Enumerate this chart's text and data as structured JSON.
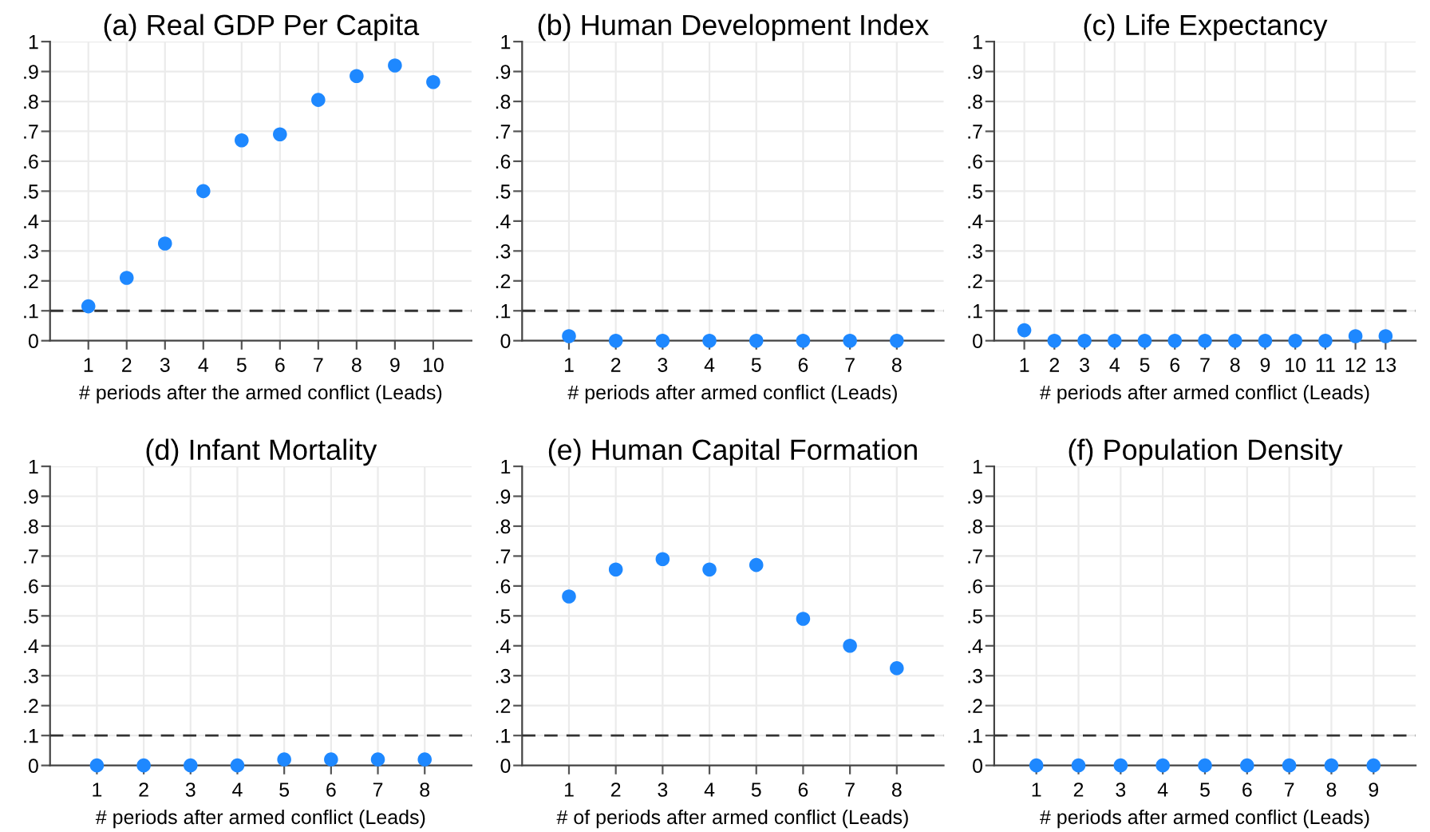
{
  "chart_data": [
    {
      "type": "scatter",
      "title": "(a) Real GDP Per Capita",
      "xlabel": "# periods after the armed conflict (Leads)",
      "x": [
        1,
        2,
        3,
        4,
        5,
        6,
        7,
        8,
        9,
        10
      ],
      "values": [
        0.115,
        0.21,
        0.325,
        0.5,
        0.67,
        0.69,
        0.805,
        0.885,
        0.92,
        0.865
      ],
      "color": "#1e88ff",
      "xlim": [
        0,
        11
      ],
      "xticks": [
        1,
        2,
        3,
        4,
        5,
        6,
        7,
        8,
        9,
        10
      ],
      "ylim": [
        0,
        1
      ],
      "yticks": [
        0,
        {
          "value": 0.1,
          "label": ".1"
        },
        {
          "value": 0.2,
          "label": ".2"
        },
        {
          "value": 0.3,
          "label": ".3"
        },
        {
          "value": 0.4,
          "label": ".4"
        },
        {
          "value": 0.5,
          "label": ".5"
        },
        {
          "value": 0.6,
          "label": ".6"
        },
        {
          "value": 0.7,
          "label": ".7"
        },
        {
          "value": 0.8,
          "label": ".8"
        },
        {
          "value": 0.9,
          "label": ".9"
        },
        1
      ],
      "grid": true,
      "marker": "circle",
      "ref_lines": [
        {
          "axis": "y",
          "value": 0.1,
          "line_style": "dashed",
          "color": "#333333"
        }
      ]
    },
    {
      "type": "scatter",
      "title": "(b) Human Development Index",
      "xlabel": "# periods after armed conflict (Leads)",
      "x": [
        1,
        2,
        3,
        4,
        5,
        6,
        7,
        8
      ],
      "values": [
        0.015,
        0,
        0,
        0,
        0,
        0,
        0,
        0
      ],
      "color": "#1e88ff",
      "xlim": [
        0,
        9
      ],
      "xticks": [
        1,
        2,
        3,
        4,
        5,
        6,
        7,
        8
      ],
      "ylim": [
        0,
        1
      ],
      "yticks": [
        0,
        {
          "value": 0.1,
          "label": ".1"
        },
        {
          "value": 0.2,
          "label": ".2"
        },
        {
          "value": 0.3,
          "label": ".3"
        },
        {
          "value": 0.4,
          "label": ".4"
        },
        {
          "value": 0.5,
          "label": ".5"
        },
        {
          "value": 0.6,
          "label": ".6"
        },
        {
          "value": 0.7,
          "label": ".7"
        },
        {
          "value": 0.8,
          "label": ".8"
        },
        {
          "value": 0.9,
          "label": ".9"
        },
        1
      ],
      "grid": true,
      "marker": "circle",
      "ref_lines": [
        {
          "axis": "y",
          "value": 0.1,
          "line_style": "dashed",
          "color": "#333333"
        }
      ]
    },
    {
      "type": "scatter",
      "title": "(c) Life Expectancy",
      "xlabel": "# periods after armed conflict (Leads)",
      "x": [
        1,
        2,
        3,
        4,
        5,
        6,
        7,
        8,
        9,
        10,
        11,
        12,
        13
      ],
      "values": [
        0.035,
        0,
        0,
        0,
        0,
        0,
        0,
        0,
        0,
        0,
        0,
        0.015,
        0.015
      ],
      "color": "#1e88ff",
      "xlim": [
        0,
        14
      ],
      "xticks": [
        1,
        2,
        3,
        4,
        5,
        6,
        7,
        8,
        9,
        10,
        11,
        12,
        13
      ],
      "ylim": [
        0,
        1
      ],
      "yticks": [
        0,
        {
          "value": 0.1,
          "label": ".1"
        },
        {
          "value": 0.2,
          "label": ".2"
        },
        {
          "value": 0.3,
          "label": ".3"
        },
        {
          "value": 0.4,
          "label": ".4"
        },
        {
          "value": 0.5,
          "label": ".5"
        },
        {
          "value": 0.6,
          "label": ".6"
        },
        {
          "value": 0.7,
          "label": ".7"
        },
        {
          "value": 0.8,
          "label": ".8"
        },
        {
          "value": 0.9,
          "label": ".9"
        },
        1
      ],
      "grid": true,
      "marker": "circle",
      "ref_lines": [
        {
          "axis": "y",
          "value": 0.1,
          "line_style": "dashed",
          "color": "#333333"
        }
      ]
    },
    {
      "type": "scatter",
      "title": "(d) Infant Mortality",
      "xlabel": "# periods after armed conflict (Leads)",
      "x": [
        1,
        2,
        3,
        4,
        5,
        6,
        7,
        8
      ],
      "values": [
        0,
        0,
        0,
        0,
        0.02,
        0.02,
        0.02,
        0.02
      ],
      "color": "#1e88ff",
      "xlim": [
        0,
        9
      ],
      "xticks": [
        1,
        2,
        3,
        4,
        5,
        6,
        7,
        8
      ],
      "ylim": [
        0,
        1
      ],
      "yticks": [
        0,
        {
          "value": 0.1,
          "label": ".1"
        },
        {
          "value": 0.2,
          "label": ".2"
        },
        {
          "value": 0.3,
          "label": ".3"
        },
        {
          "value": 0.4,
          "label": ".4"
        },
        {
          "value": 0.5,
          "label": ".5"
        },
        {
          "value": 0.6,
          "label": ".6"
        },
        {
          "value": 0.7,
          "label": ".7"
        },
        {
          "value": 0.8,
          "label": ".8"
        },
        {
          "value": 0.9,
          "label": ".9"
        },
        1
      ],
      "grid": true,
      "marker": "circle",
      "ref_lines": [
        {
          "axis": "y",
          "value": 0.1,
          "line_style": "dashed",
          "color": "#333333"
        }
      ]
    },
    {
      "type": "scatter",
      "title": "(e) Human Capital Formation",
      "xlabel": "# of periods after armed conflict (Leads)",
      "x": [
        1,
        2,
        3,
        4,
        5,
        6,
        7,
        8
      ],
      "values": [
        0.565,
        0.655,
        0.69,
        0.655,
        0.67,
        0.49,
        0.4,
        0.325
      ],
      "color": "#1e88ff",
      "xlim": [
        0,
        9
      ],
      "xticks": [
        1,
        2,
        3,
        4,
        5,
        6,
        7,
        8
      ],
      "ylim": [
        0,
        1
      ],
      "yticks": [
        0,
        {
          "value": 0.1,
          "label": ".1"
        },
        {
          "value": 0.2,
          "label": ".2"
        },
        {
          "value": 0.3,
          "label": ".3"
        },
        {
          "value": 0.4,
          "label": ".4"
        },
        {
          "value": 0.5,
          "label": ".5"
        },
        {
          "value": 0.6,
          "label": ".6"
        },
        {
          "value": 0.7,
          "label": ".7"
        },
        {
          "value": 0.8,
          "label": ".8"
        },
        {
          "value": 0.9,
          "label": ".9"
        },
        1
      ],
      "grid": true,
      "marker": "circle",
      "ref_lines": [
        {
          "axis": "y",
          "value": 0.1,
          "line_style": "dashed",
          "color": "#333333"
        }
      ]
    },
    {
      "type": "scatter",
      "title": "(f) Population Density",
      "xlabel": "# periods after armed conflict (Leads)",
      "x": [
        1,
        2,
        3,
        4,
        5,
        6,
        7,
        8,
        9
      ],
      "values": [
        0,
        0,
        0,
        0,
        0,
        0,
        0,
        0,
        0
      ],
      "color": "#1e88ff",
      "xlim": [
        0,
        10
      ],
      "xticks": [
        1,
        2,
        3,
        4,
        5,
        6,
        7,
        8,
        9
      ],
      "ylim": [
        0,
        1
      ],
      "yticks": [
        0,
        {
          "value": 0.1,
          "label": ".1"
        },
        {
          "value": 0.2,
          "label": ".2"
        },
        {
          "value": 0.3,
          "label": ".3"
        },
        {
          "value": 0.4,
          "label": ".4"
        },
        {
          "value": 0.5,
          "label": ".5"
        },
        {
          "value": 0.6,
          "label": ".6"
        },
        {
          "value": 0.7,
          "label": ".7"
        },
        {
          "value": 0.8,
          "label": ".8"
        },
        {
          "value": 0.9,
          "label": ".9"
        },
        1
      ],
      "grid": true,
      "marker": "circle",
      "ref_lines": [
        {
          "axis": "y",
          "value": 0.1,
          "line_style": "dashed",
          "color": "#333333"
        }
      ]
    }
  ]
}
